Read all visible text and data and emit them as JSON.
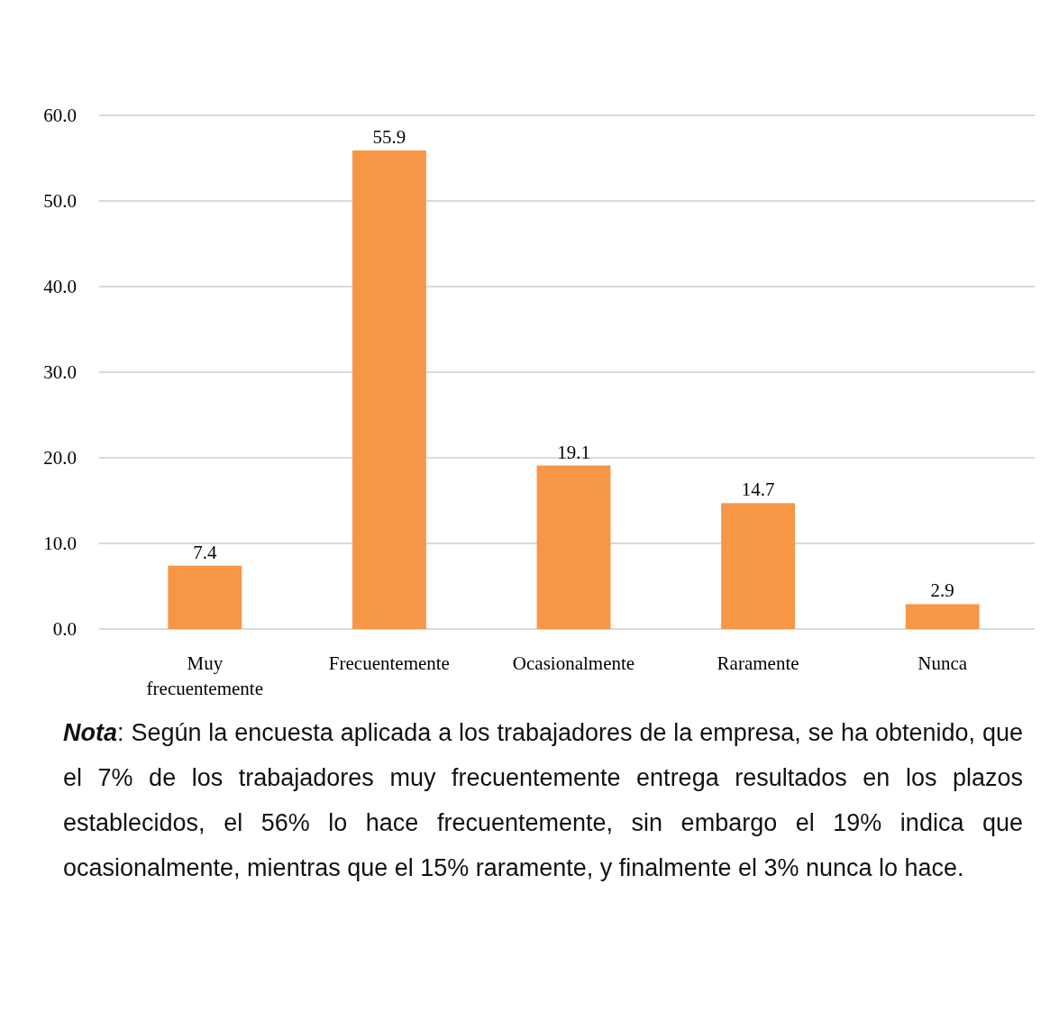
{
  "chart_data": {
    "type": "bar",
    "categories": [
      "Muy frecuentemente",
      "Frecuentemente",
      "Ocasionalmente",
      "Raramente",
      "Nunca"
    ],
    "values": [
      7.4,
      55.9,
      19.1,
      14.7,
      2.9
    ],
    "color": "#f79646",
    "ylim": [
      0,
      60
    ],
    "yticks": [
      {
        "value": 0,
        "label": "0.0"
      },
      {
        "value": 10,
        "label": "10.0"
      },
      {
        "value": 20,
        "label": "20.0"
      },
      {
        "value": 30,
        "label": "30.0"
      },
      {
        "value": 40,
        "label": "40.0"
      },
      {
        "value": 50,
        "label": "50.0"
      },
      {
        "value": 60,
        "label": "60.0"
      }
    ],
    "grid": "y",
    "data_labels": true,
    "annotations": [
      "Nota: Según la encuesta aplicada a los trabajadores de la empresa, se ha obtenido, que el 7% de los trabajadores muy frecuentemente entrega resultados en los plazos establecidos, el 56% lo hace frecuentemente, sin embargo el 19% indica que ocasionalmente, mientras que el 15% raramente, y finalmente el 3%  nunca lo hace."
    ]
  }
}
